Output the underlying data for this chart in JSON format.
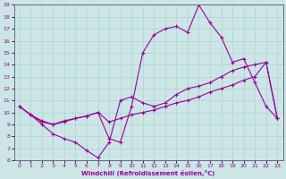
{
  "xlabel": "Windchill (Refroidissement éolien,°C)",
  "xlim": [
    -0.5,
    23.5
  ],
  "ylim": [
    6,
    19
  ],
  "xticks": [
    0,
    1,
    2,
    3,
    4,
    5,
    6,
    7,
    8,
    9,
    10,
    11,
    12,
    13,
    14,
    15,
    16,
    17,
    18,
    19,
    20,
    21,
    22,
    23
  ],
  "yticks": [
    6,
    7,
    8,
    9,
    10,
    11,
    12,
    13,
    14,
    15,
    16,
    17,
    18,
    19
  ],
  "background_color": "#cce5e5",
  "line_color": "#990099",
  "line1_x": [
    0,
    1,
    2,
    3,
    4,
    5,
    6,
    7,
    8,
    9,
    10,
    11,
    12,
    13,
    14,
    15,
    16,
    17,
    18,
    19,
    20,
    21,
    22,
    23
  ],
  "line1_y": [
    10.5,
    9.8,
    9.0,
    8.2,
    7.8,
    7.5,
    6.8,
    6.2,
    7.5,
    11.0,
    11.3,
    10.8,
    10.5,
    10.8,
    11.5,
    12.0,
    12.2,
    12.5,
    13.0,
    13.5,
    13.8,
    14.0,
    14.2,
    9.5
  ],
  "line2_x": [
    0,
    1,
    2,
    3,
    4,
    5,
    6,
    7,
    8,
    9,
    10,
    11,
    12,
    13,
    14,
    15,
    16,
    17,
    18,
    19,
    20,
    21,
    22,
    23
  ],
  "line2_y": [
    10.5,
    9.8,
    9.3,
    9.0,
    9.3,
    9.5,
    9.7,
    10.0,
    7.8,
    7.5,
    10.5,
    15.0,
    16.5,
    17.0,
    17.2,
    16.7,
    19.0,
    17.5,
    16.3,
    14.2,
    14.5,
    12.5,
    10.5,
    9.5
  ],
  "line3_x": [
    0,
    1,
    2,
    3,
    4,
    5,
    6,
    7,
    8,
    9,
    10,
    11,
    12,
    13,
    14,
    15,
    16,
    17,
    18,
    19,
    20,
    21,
    22,
    23
  ],
  "line3_y": [
    10.5,
    9.8,
    9.2,
    9.0,
    9.2,
    9.5,
    9.7,
    10.0,
    9.2,
    9.5,
    9.8,
    10.0,
    10.2,
    10.5,
    10.8,
    11.0,
    11.3,
    11.7,
    12.0,
    12.3,
    12.7,
    13.0,
    14.2,
    9.5
  ]
}
